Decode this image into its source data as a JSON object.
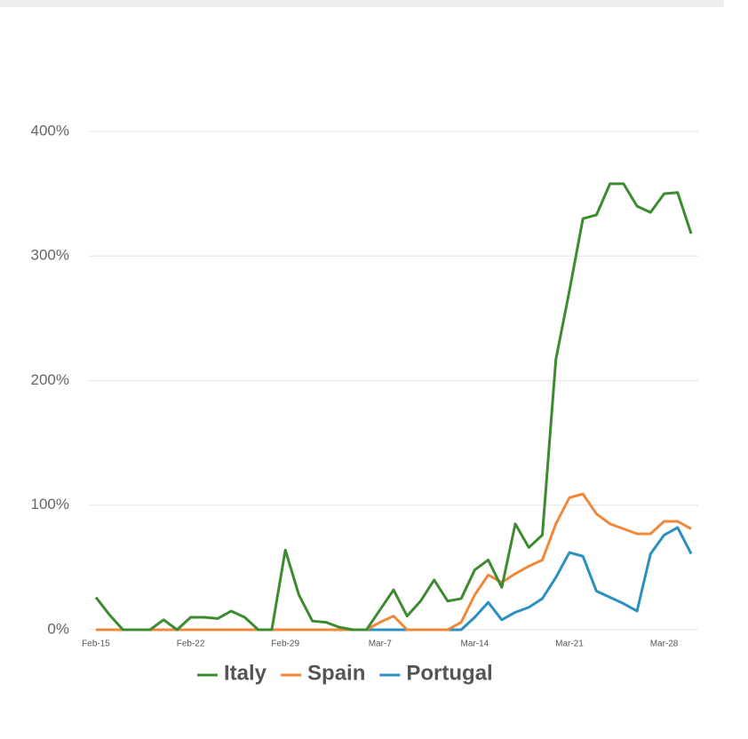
{
  "chart_data": {
    "type": "line",
    "categories": [
      "Feb-15",
      null,
      null,
      null,
      null,
      null,
      null,
      "Feb-22",
      null,
      null,
      null,
      null,
      null,
      null,
      "Feb-29",
      null,
      null,
      null,
      null,
      null,
      null,
      "Mar-7",
      null,
      null,
      null,
      null,
      null,
      null,
      "Mar-14",
      null,
      null,
      null,
      null,
      null,
      null,
      "Mar-21",
      null,
      null,
      null,
      null,
      null,
      null,
      "Mar-28",
      null,
      null
    ],
    "series": [
      {
        "name": "Italy",
        "color": "#3d8b2f",
        "values": [
          26,
          12,
          0,
          0,
          0,
          8,
          0,
          10,
          10,
          9,
          15,
          10,
          0,
          0,
          64,
          28,
          7,
          6,
          2,
          0,
          0,
          16,
          32,
          11,
          23,
          40,
          23,
          25,
          48,
          56,
          34,
          85,
          66,
          76,
          217,
          272,
          330,
          333,
          358,
          358,
          340,
          335,
          350,
          351,
          318
        ]
      },
      {
        "name": "Spain",
        "color": "#f0883a",
        "values": [
          0,
          0,
          0,
          0,
          0,
          0,
          0,
          0,
          0,
          0,
          0,
          0,
          0,
          0,
          0,
          0,
          0,
          0,
          0,
          0,
          0,
          6,
          11,
          0,
          0,
          0,
          0,
          6,
          28,
          44,
          38,
          45,
          51,
          56,
          85,
          106,
          109,
          93,
          85,
          81,
          77,
          77,
          87,
          87,
          81
        ]
      },
      {
        "name": "Portugal",
        "color": "#2a8fc1",
        "values": [
          0,
          0,
          0,
          0,
          0,
          0,
          0,
          0,
          0,
          0,
          0,
          0,
          0,
          0,
          0,
          0,
          0,
          0,
          0,
          0,
          0,
          0,
          0,
          0,
          0,
          0,
          0,
          0,
          10,
          22,
          8,
          14,
          18,
          25,
          42,
          62,
          59,
          31,
          26,
          21,
          15,
          61,
          76,
          82,
          61
        ]
      }
    ],
    "ylim": [
      0,
      400
    ],
    "yticks": [
      {
        "value": 0,
        "label": "0%"
      },
      {
        "value": 100,
        "label": "100%"
      },
      {
        "value": 200,
        "label": "200%"
      },
      {
        "value": 300,
        "label": "300%"
      },
      {
        "value": 400,
        "label": "400%"
      }
    ],
    "grid": true
  }
}
